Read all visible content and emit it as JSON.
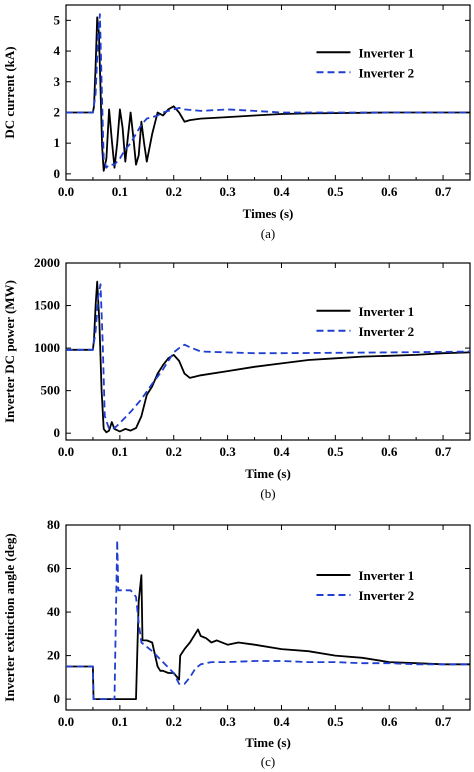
{
  "chart_data": [
    {
      "type": "line",
      "caption": "(a)",
      "xlabel": "Times (s)",
      "ylabel": "DC current (kA)",
      "xlim": [
        0.0,
        0.75
      ],
      "ylim": [
        -0.2,
        5.5
      ],
      "xticks": [
        "0.0",
        "0.1",
        "0.2",
        "0.3",
        "0.4",
        "0.5",
        "0.6",
        "0.7"
      ],
      "yticks": [
        "0",
        "1",
        "2",
        "3",
        "4",
        "5"
      ],
      "legend_position": "top-right",
      "series": [
        {
          "name": "Inverter 1",
          "color": "#000000",
          "dash": "solid",
          "x": [
            0,
            0.05,
            0.052,
            0.055,
            0.058,
            0.061,
            0.064,
            0.067,
            0.07,
            0.075,
            0.08,
            0.085,
            0.09,
            0.095,
            0.1,
            0.105,
            0.11,
            0.115,
            0.12,
            0.125,
            0.13,
            0.135,
            0.14,
            0.145,
            0.15,
            0.16,
            0.17,
            0.18,
            0.19,
            0.2,
            0.21,
            0.22,
            0.23,
            0.25,
            0.3,
            0.35,
            0.4,
            0.45,
            0.5,
            0.55,
            0.6,
            0.65,
            0.7,
            0.75
          ],
          "y": [
            2.0,
            2.0,
            2.2,
            3.5,
            5.1,
            4.6,
            2.8,
            0.9,
            0.1,
            0.5,
            2.1,
            1.1,
            0.2,
            1.0,
            2.1,
            1.5,
            0.4,
            1.2,
            2.0,
            1.2,
            0.3,
            0.6,
            1.7,
            1.0,
            0.4,
            1.3,
            2.0,
            1.9,
            2.1,
            2.2,
            2.0,
            1.7,
            1.75,
            1.8,
            1.85,
            1.9,
            1.95,
            1.97,
            1.98,
            1.99,
            2.0,
            2.0,
            2.0,
            2.0
          ]
        },
        {
          "name": "Inverter 2",
          "color": "#1f3fd0",
          "dash": "dashed",
          "x": [
            0,
            0.05,
            0.055,
            0.06,
            0.063,
            0.066,
            0.07,
            0.075,
            0.08,
            0.09,
            0.1,
            0.11,
            0.12,
            0.13,
            0.14,
            0.15,
            0.16,
            0.17,
            0.18,
            0.19,
            0.2,
            0.21,
            0.22,
            0.25,
            0.3,
            0.35,
            0.4,
            0.5,
            0.6,
            0.7,
            0.75
          ],
          "y": [
            2.0,
            2.0,
            2.6,
            4.6,
            5.2,
            3.0,
            0.5,
            0.2,
            0.3,
            0.3,
            0.5,
            0.8,
            1.0,
            1.3,
            1.6,
            1.8,
            1.85,
            1.9,
            2.0,
            2.05,
            2.1,
            2.15,
            2.1,
            2.05,
            2.1,
            2.05,
            2.0,
            2.0,
            2.0,
            2.0,
            2.0
          ]
        }
      ]
    },
    {
      "type": "line",
      "caption": "(b)",
      "xlabel": "Time (s)",
      "ylabel": "Inverter DC power (MW)",
      "xlim": [
        0.0,
        0.75
      ],
      "ylim": [
        -80,
        2000
      ],
      "xticks": [
        "0.0",
        "0.1",
        "0.2",
        "0.3",
        "0.4",
        "0.5",
        "0.6",
        "0.7"
      ],
      "yticks": [
        "0",
        "500",
        "1000",
        "1500",
        "2000"
      ],
      "legend_position": "top-right",
      "series": [
        {
          "name": "Inverter 1",
          "color": "#000000",
          "dash": "solid",
          "x": [
            0,
            0.05,
            0.052,
            0.055,
            0.058,
            0.062,
            0.066,
            0.07,
            0.075,
            0.08,
            0.085,
            0.09,
            0.1,
            0.11,
            0.12,
            0.13,
            0.14,
            0.15,
            0.16,
            0.17,
            0.18,
            0.19,
            0.2,
            0.21,
            0.22,
            0.23,
            0.25,
            0.3,
            0.35,
            0.4,
            0.45,
            0.5,
            0.55,
            0.6,
            0.65,
            0.7,
            0.75
          ],
          "y": [
            980,
            980,
            1100,
            1500,
            1780,
            1300,
            500,
            50,
            10,
            30,
            130,
            50,
            20,
            50,
            30,
            60,
            200,
            450,
            550,
            700,
            800,
            880,
            920,
            850,
            700,
            650,
            680,
            730,
            780,
            820,
            860,
            880,
            900,
            910,
            920,
            940,
            950
          ]
        },
        {
          "name": "Inverter 2",
          "color": "#1f3fd0",
          "dash": "dashed",
          "x": [
            0,
            0.05,
            0.055,
            0.06,
            0.064,
            0.068,
            0.072,
            0.08,
            0.09,
            0.1,
            0.12,
            0.14,
            0.16,
            0.18,
            0.2,
            0.21,
            0.22,
            0.23,
            0.25,
            0.3,
            0.35,
            0.4,
            0.5,
            0.6,
            0.7,
            0.75
          ],
          "y": [
            980,
            980,
            1200,
            1600,
            1750,
            1100,
            200,
            50,
            60,
            120,
            250,
            400,
            580,
            750,
            950,
            1000,
            1040,
            1010,
            960,
            950,
            940,
            940,
            945,
            950,
            955,
            960
          ]
        }
      ]
    },
    {
      "type": "line",
      "caption": "(c)",
      "xlabel": "Time (s)",
      "ylabel": "Inverter extinction angle (deg)",
      "xlim": [
        0.0,
        0.75
      ],
      "ylim": [
        -5,
        80
      ],
      "xticks": [
        "0.0",
        "0.1",
        "0.2",
        "0.3",
        "0.4",
        "0.5",
        "0.6",
        "0.7"
      ],
      "yticks": [
        "0",
        "20",
        "40",
        "60",
        "80"
      ],
      "legend_position": "top-right",
      "series": [
        {
          "name": "Inverter 1",
          "color": "#000000",
          "dash": "solid",
          "x": [
            0,
            0.05,
            0.051,
            0.13,
            0.135,
            0.14,
            0.142,
            0.145,
            0.15,
            0.16,
            0.17,
            0.175,
            0.18,
            0.19,
            0.2,
            0.21,
            0.212,
            0.22,
            0.23,
            0.24,
            0.245,
            0.25,
            0.26,
            0.27,
            0.28,
            0.3,
            0.32,
            0.35,
            0.4,
            0.45,
            0.5,
            0.55,
            0.6,
            0.65,
            0.7,
            0.75
          ],
          "y": [
            15,
            15,
            0,
            0,
            45,
            57,
            27,
            27,
            27,
            26,
            15,
            13,
            13,
            12,
            12,
            9,
            20,
            23,
            26,
            30,
            32,
            29,
            28,
            26,
            27,
            25,
            26,
            25,
            23,
            22,
            20,
            19,
            17,
            16.5,
            16,
            16
          ]
        },
        {
          "name": "Inverter 2",
          "color": "#1f3fd0",
          "dash": "dashed",
          "x": [
            0,
            0.05,
            0.051,
            0.09,
            0.092,
            0.095,
            0.097,
            0.1,
            0.12,
            0.13,
            0.135,
            0.14,
            0.16,
            0.18,
            0.2,
            0.21,
            0.22,
            0.23,
            0.24,
            0.25,
            0.27,
            0.3,
            0.35,
            0.4,
            0.45,
            0.5,
            0.55,
            0.6,
            0.65,
            0.7,
            0.75
          ],
          "y": [
            15,
            15,
            0,
            0,
            30,
            73,
            50,
            50,
            50,
            47,
            35,
            26,
            22,
            17,
            12,
            7,
            7,
            10,
            14,
            16,
            17,
            17,
            17.5,
            17.5,
            17,
            17,
            16.5,
            16.5,
            16,
            16,
            16
          ]
        }
      ]
    }
  ]
}
